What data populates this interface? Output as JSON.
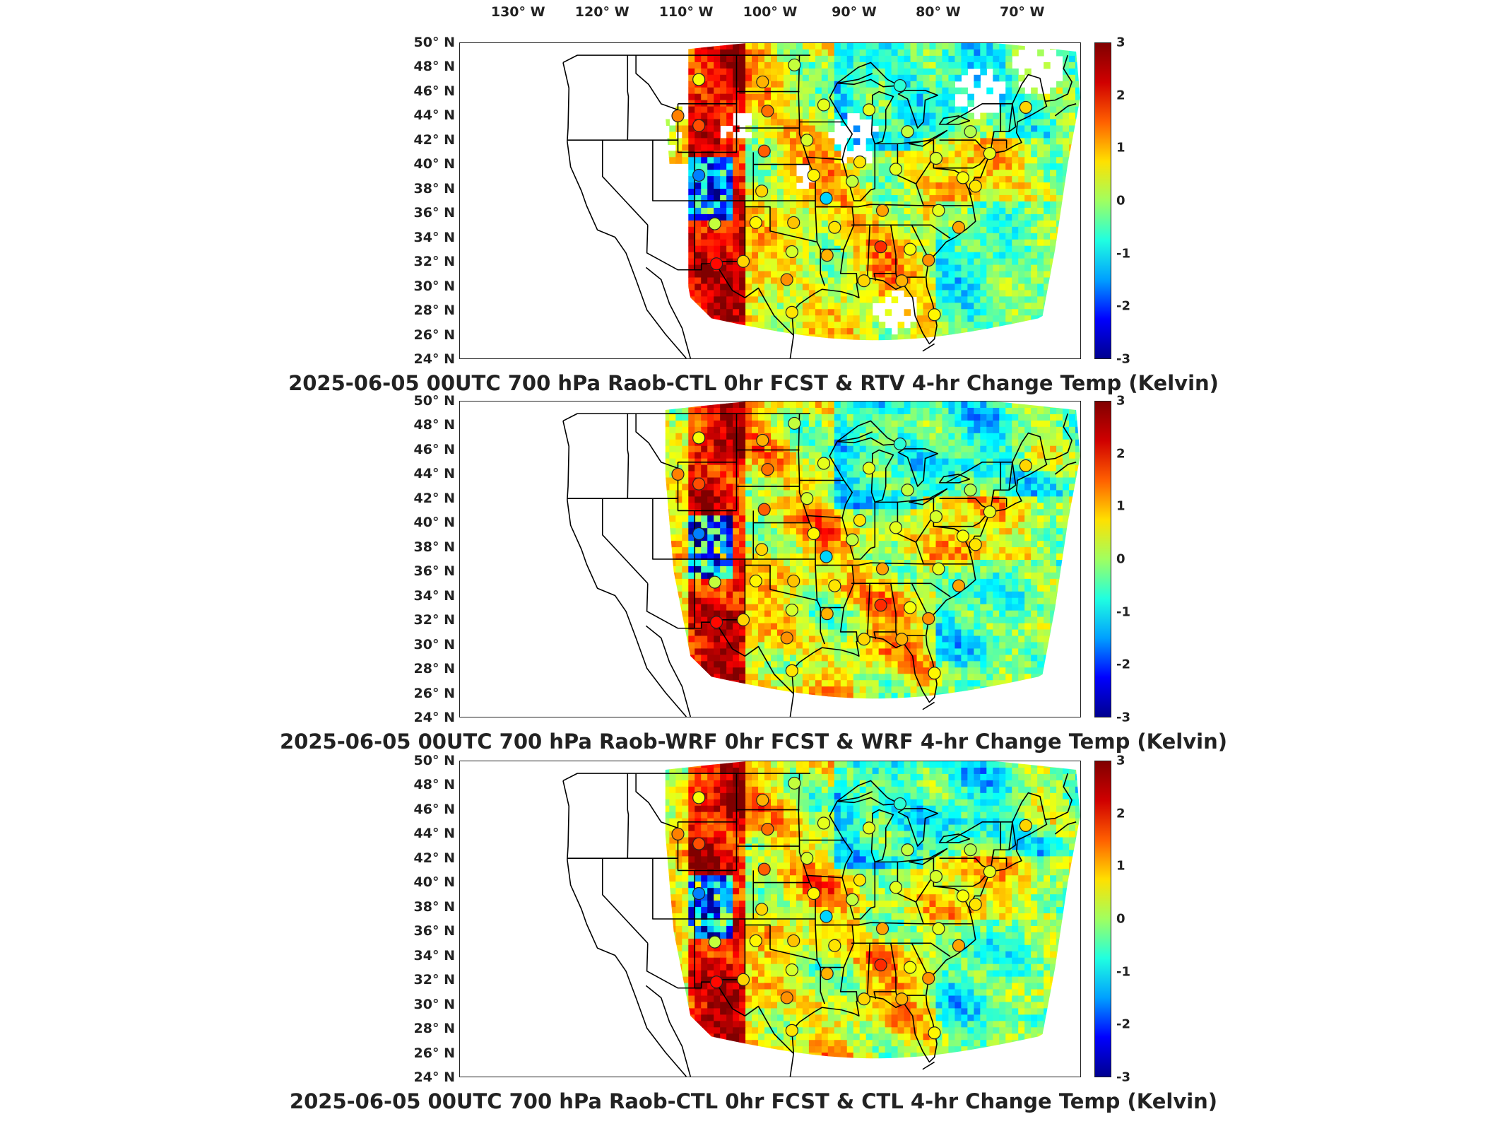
{
  "top_axis": {
    "lon_labels": [
      "130° W",
      "120° W",
      "110° W",
      "100° W",
      "90° W",
      "80° W",
      "70° W"
    ]
  },
  "lat_labels": [
    "50° N",
    "48° N",
    "46° N",
    "44° N",
    "42° N",
    "40° N",
    "38° N",
    "36° N",
    "34° N",
    "32° N",
    "30° N",
    "28° N",
    "26° N",
    "24° N"
  ],
  "colorbar": {
    "ticks": [
      "3",
      "2",
      "1",
      "0",
      "-1",
      "-2",
      "-3"
    ],
    "range": [
      -3,
      3
    ],
    "colormap": "jet",
    "colors": [
      "#00008f",
      "#0000ff",
      "#00a0ff",
      "#20ffe0",
      "#a0ff60",
      "#ffe000",
      "#ff6000",
      "#d00000",
      "#800000"
    ]
  },
  "panels": [
    {
      "id": "rtv",
      "title": "2025-06-05 00UTC 700 hPa Raob-CTL 0hr FCST & RTV 4-hr Change Temp (Kelvin)",
      "field": "patchy"
    },
    {
      "id": "wrf",
      "title": "2025-06-05 00UTC 700 hPa Raob-WRF 0hr FCST & WRF 4-hr Change Temp (Kelvin)",
      "field": "full"
    },
    {
      "id": "ctl",
      "title": "2025-06-05 00UTC 700 hPa Raob-CTL 0hr FCST & CTL 4-hr Change Temp (Kelvin)",
      "field": "full"
    }
  ],
  "map_extent": {
    "lon": [
      -137,
      -63
    ],
    "lat": [
      24,
      50
    ]
  },
  "stations": [
    {
      "lon": -108.5,
      "lat": 47.0,
      "v": 0.7
    },
    {
      "lon": -111.0,
      "lat": 44.0,
      "v": 1.5
    },
    {
      "lon": -108.5,
      "lat": 43.2,
      "v": 1.8
    },
    {
      "lon": -108.5,
      "lat": 39.1,
      "v": -1.5
    },
    {
      "lon": -106.6,
      "lat": 35.1,
      "v": 0.4
    },
    {
      "lon": -106.4,
      "lat": 31.8,
      "v": 2.2
    },
    {
      "lon": -101.7,
      "lat": 35.2,
      "v": 0.8
    },
    {
      "lon": -103.2,
      "lat": 32.0,
      "v": 1.0
    },
    {
      "lon": -100.9,
      "lat": 46.8,
      "v": 1.2
    },
    {
      "lon": -100.3,
      "lat": 44.4,
      "v": 1.6
    },
    {
      "lon": -100.7,
      "lat": 41.1,
      "v": 1.7
    },
    {
      "lon": -101.0,
      "lat": 37.8,
      "v": 1.0
    },
    {
      "lon": -97.4,
      "lat": 32.8,
      "v": 0.5
    },
    {
      "lon": -97.2,
      "lat": 35.2,
      "v": 1.1
    },
    {
      "lon": -97.4,
      "lat": 27.8,
      "v": 0.9
    },
    {
      "lon": -98.0,
      "lat": 30.5,
      "v": 1.4
    },
    {
      "lon": -94.8,
      "lat": 39.1,
      "v": 0.8
    },
    {
      "lon": -95.6,
      "lat": 42.0,
      "v": 0.5
    },
    {
      "lon": -93.6,
      "lat": 44.9,
      "v": 0.6
    },
    {
      "lon": -93.3,
      "lat": 37.2,
      "v": -1.0
    },
    {
      "lon": -92.3,
      "lat": 34.8,
      "v": 0.9
    },
    {
      "lon": -93.2,
      "lat": 32.5,
      "v": 1.2
    },
    {
      "lon": -90.2,
      "lat": 38.6,
      "v": 0.4
    },
    {
      "lon": -89.3,
      "lat": 40.2,
      "v": 0.9
    },
    {
      "lon": -88.2,
      "lat": 44.5,
      "v": 0.6
    },
    {
      "lon": -84.5,
      "lat": 46.5,
      "v": -0.5
    },
    {
      "lon": -86.6,
      "lat": 36.2,
      "v": 1.3
    },
    {
      "lon": -86.8,
      "lat": 33.2,
      "v": 2.0
    },
    {
      "lon": -88.8,
      "lat": 30.4,
      "v": 1.0
    },
    {
      "lon": -84.3,
      "lat": 30.4,
      "v": 1.2
    },
    {
      "lon": -83.3,
      "lat": 33.0,
      "v": 0.7
    },
    {
      "lon": -80.4,
      "lat": 27.6,
      "v": 0.8
    },
    {
      "lon": -81.1,
      "lat": 32.1,
      "v": 1.4
    },
    {
      "lon": -79.9,
      "lat": 36.2,
      "v": 0.6
    },
    {
      "lon": -80.2,
      "lat": 40.5,
      "v": 0.5
    },
    {
      "lon": -83.6,
      "lat": 42.7,
      "v": 0.4
    },
    {
      "lon": -85.0,
      "lat": 39.6,
      "v": 0.6
    },
    {
      "lon": -76.1,
      "lat": 42.7,
      "v": 0.3
    },
    {
      "lon": -77.0,
      "lat": 38.9,
      "v": 0.7
    },
    {
      "lon": -75.5,
      "lat": 38.2,
      "v": 0.9
    },
    {
      "lon": -77.5,
      "lat": 34.8,
      "v": 1.3
    },
    {
      "lon": -73.8,
      "lat": 40.9,
      "v": 0.6
    },
    {
      "lon": -69.5,
      "lat": 44.7,
      "v": 1.0
    },
    {
      "lon": -97.1,
      "lat": 48.2,
      "v": 0.4
    }
  ]
}
